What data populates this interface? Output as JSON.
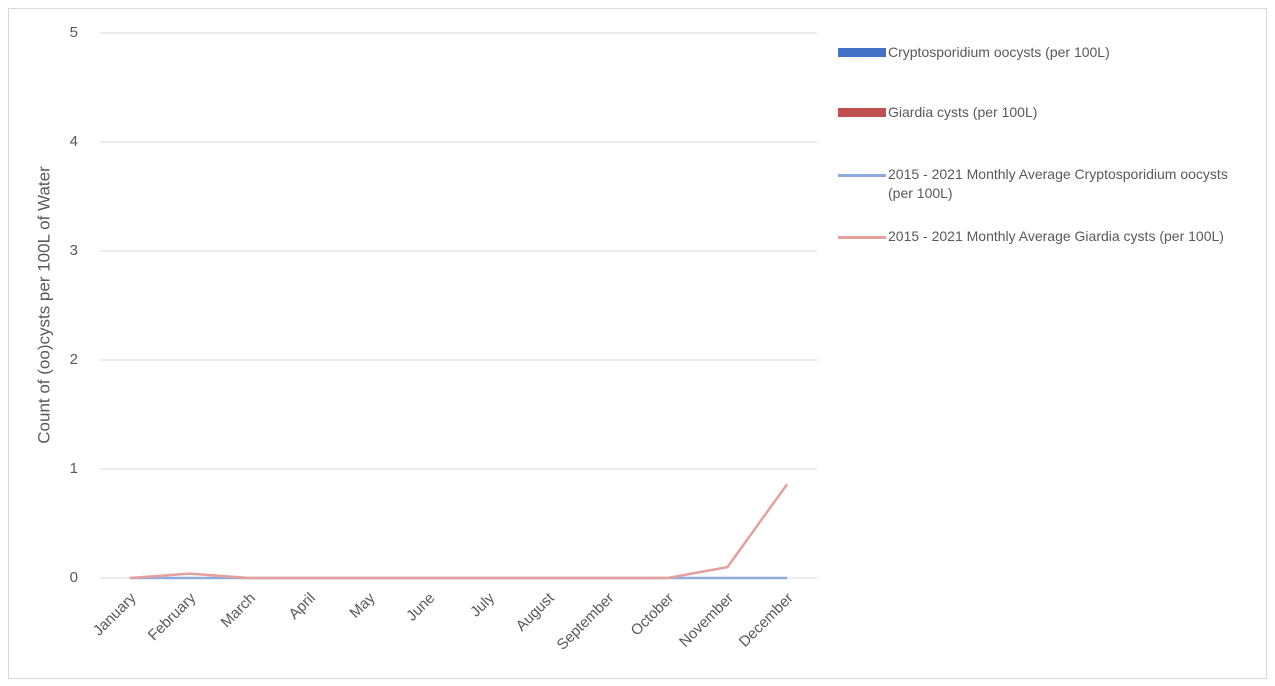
{
  "chart_data": {
    "type": "combo",
    "y_label": "Count of (oo)cysts per 100L of Water",
    "categories": [
      "January",
      "February",
      "March",
      "April",
      "May",
      "June",
      "July",
      "August",
      "September",
      "October",
      "November",
      "December"
    ],
    "series": [
      {
        "name": "Cryptosporidium oocysts (per 100L)",
        "type": "bar",
        "color": "#4472c4",
        "values": [
          0,
          0,
          0,
          0,
          0,
          0,
          0,
          0,
          0,
          0,
          0,
          0
        ]
      },
      {
        "name": "Giardia cysts (per 100L)",
        "type": "bar",
        "color": "#c0504d",
        "values": [
          0,
          0,
          0,
          0,
          0,
          0,
          0,
          0,
          0,
          0,
          0,
          0
        ]
      },
      {
        "name": "2015 - 2021 Monthly Average Cryptosporidium oocysts (per 100L)",
        "type": "line",
        "color": "#8faadc",
        "values": [
          0,
          0,
          0,
          0,
          0,
          0,
          0,
          0,
          0,
          0,
          0,
          0
        ]
      },
      {
        "name": "2015 - 2021 Monthly Average Giardia cysts (per 100L)",
        "type": "line",
        "color": "#e6a09c",
        "values": [
          0,
          0.04,
          0,
          0,
          0,
          0,
          0,
          0,
          0,
          0,
          0.1,
          0.86
        ]
      }
    ],
    "ylim": [
      0,
      5
    ],
    "yticks": [
      0,
      1,
      2,
      3,
      4,
      5
    ],
    "grid": true,
    "legend": "right"
  }
}
